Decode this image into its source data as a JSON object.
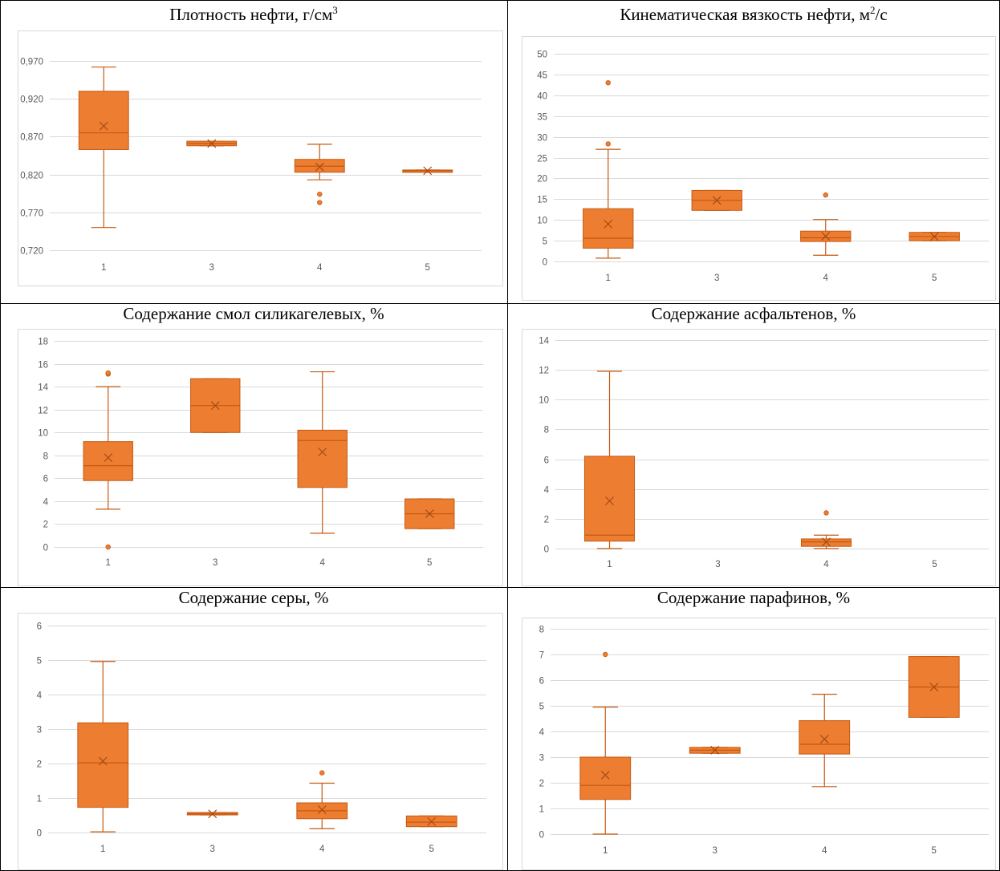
{
  "colors": {
    "box": "#ED7D31",
    "box_edge": "#C55A11",
    "grid": "#D9D9D9",
    "tick_text": "#595959",
    "table_border": "#000000"
  },
  "chart_data": [
    {
      "type": "box",
      "title": "Плотность нефти, г/см",
      "title_sup": "3",
      "categories": [
        "1",
        "3",
        "4",
        "5"
      ],
      "ylim": [
        0.72,
        0.97
      ],
      "yticks": [
        0.72,
        0.77,
        0.82,
        0.87,
        0.92,
        0.97
      ],
      "ytick_labels": [
        "0,720",
        "0,770",
        "0,820",
        "0,870",
        "0,920",
        "0,970"
      ],
      "grid": true,
      "boxes": [
        {
          "category": "1",
          "min": 0.75,
          "q1": 0.853,
          "median": 0.875,
          "q3": 0.93,
          "max": 0.962,
          "mean": 0.884,
          "outliers": []
        },
        {
          "category": "3",
          "min": 0.858,
          "q1": 0.858,
          "median": 0.861,
          "q3": 0.864,
          "max": 0.864,
          "mean": 0.861,
          "outliers": []
        },
        {
          "category": "4",
          "min": 0.813,
          "q1": 0.823,
          "median": 0.831,
          "q3": 0.84,
          "max": 0.86,
          "mean": 0.83,
          "outliers": [
            0.794,
            0.783
          ]
        },
        {
          "category": "5",
          "min": 0.824,
          "q1": 0.824,
          "median": 0.825,
          "q3": 0.826,
          "max": 0.826,
          "mean": 0.825,
          "outliers": []
        }
      ]
    },
    {
      "type": "box",
      "title": "Кинематическая вязкость нефти, м",
      "title_sup": "2",
      "title_suffix": "/с",
      "categories": [
        "1",
        "3",
        "4",
        "5"
      ],
      "ylim": [
        0,
        50
      ],
      "yticks": [
        0,
        5,
        10,
        15,
        20,
        25,
        30,
        35,
        40,
        45,
        50
      ],
      "ytick_labels": [
        "0",
        "5",
        "10",
        "15",
        "20",
        "25",
        "30",
        "35",
        "40",
        "45",
        "50"
      ],
      "grid": true,
      "boxes": [
        {
          "category": "1",
          "min": 0.8,
          "q1": 3.2,
          "median": 5.6,
          "q3": 12.7,
          "max": 27.0,
          "mean": 9.0,
          "outliers": [
            28.3,
            43.0
          ]
        },
        {
          "category": "3",
          "min": 12.3,
          "q1": 12.3,
          "median": 14.7,
          "q3": 17.1,
          "max": 17.1,
          "mean": 14.7,
          "outliers": []
        },
        {
          "category": "4",
          "min": 1.5,
          "q1": 4.8,
          "median": 5.7,
          "q3": 7.3,
          "max": 10.1,
          "mean": 6.1,
          "outliers": [
            16.0
          ]
        },
        {
          "category": "5",
          "min": 5.0,
          "q1": 5.0,
          "median": 6.0,
          "q3": 7.0,
          "max": 7.0,
          "mean": 6.0,
          "outliers": []
        }
      ]
    },
    {
      "type": "box",
      "title": "Содержание смол силикагелевых, %",
      "categories": [
        "1",
        "3",
        "4",
        "5"
      ],
      "ylim": [
        0,
        18
      ],
      "yticks": [
        0,
        2,
        4,
        6,
        8,
        10,
        12,
        14,
        16,
        18
      ],
      "ytick_labels": [
        "0",
        "2",
        "4",
        "6",
        "8",
        "10",
        "12",
        "14",
        "16",
        "18"
      ],
      "grid": true,
      "boxes": [
        {
          "category": "1",
          "min": 3.3,
          "q1": 5.8,
          "median": 7.1,
          "q3": 9.2,
          "max": 14.0,
          "mean": 7.8,
          "outliers": [
            15.1,
            15.2,
            0.0
          ]
        },
        {
          "category": "3",
          "min": 10.0,
          "q1": 10.0,
          "median": 12.35,
          "q3": 14.7,
          "max": 14.7,
          "mean": 12.35,
          "outliers": []
        },
        {
          "category": "4",
          "min": 1.2,
          "q1": 5.2,
          "median": 9.3,
          "q3": 10.2,
          "max": 15.3,
          "mean": 8.3,
          "outliers": []
        },
        {
          "category": "5",
          "min": 1.6,
          "q1": 1.6,
          "median": 2.9,
          "q3": 4.2,
          "max": 4.2,
          "mean": 2.9,
          "outliers": []
        }
      ]
    },
    {
      "type": "box",
      "title": "Содержание асфальтенов, %",
      "categories": [
        "1",
        "3",
        "4",
        "5"
      ],
      "ylim": [
        0,
        14
      ],
      "yticks": [
        0,
        2,
        4,
        6,
        8,
        10,
        12,
        14
      ],
      "ytick_labels": [
        "0",
        "2",
        "4",
        "6",
        "8",
        "10",
        "12",
        "14"
      ],
      "grid": true,
      "boxes": [
        {
          "category": "1",
          "min": 0.0,
          "q1": 0.5,
          "median": 0.9,
          "q3": 6.2,
          "max": 11.9,
          "mean": 3.2,
          "outliers": []
        },
        {
          "category": "4",
          "min": 0.0,
          "q1": 0.15,
          "median": 0.45,
          "q3": 0.65,
          "max": 0.9,
          "mean": 0.45,
          "outliers": [
            2.4
          ]
        }
      ]
    },
    {
      "type": "box",
      "title": "Содержание серы, %",
      "categories": [
        "1",
        "3",
        "4",
        "5"
      ],
      "ylim": [
        0,
        6
      ],
      "yticks": [
        0,
        1,
        2,
        3,
        4,
        5,
        6
      ],
      "ytick_labels": [
        "0",
        "1",
        "2",
        "3",
        "4",
        "5",
        "6"
      ],
      "grid": true,
      "boxes": [
        {
          "category": "1",
          "min": 0.02,
          "q1": 0.73,
          "median": 2.02,
          "q3": 3.18,
          "max": 4.96,
          "mean": 2.07,
          "outliers": []
        },
        {
          "category": "3",
          "min": 0.51,
          "q1": 0.51,
          "median": 0.54,
          "q3": 0.58,
          "max": 0.58,
          "mean": 0.54,
          "outliers": []
        },
        {
          "category": "4",
          "min": 0.11,
          "q1": 0.4,
          "median": 0.63,
          "q3": 0.86,
          "max": 1.43,
          "mean": 0.66,
          "outliers": [
            1.73
          ]
        },
        {
          "category": "5",
          "min": 0.17,
          "q1": 0.17,
          "median": 0.3,
          "q3": 0.48,
          "max": 0.48,
          "mean": 0.32,
          "outliers": []
        }
      ]
    },
    {
      "type": "box",
      "title": "Содержание парафинов, %",
      "categories": [
        "1",
        "3",
        "4",
        "5"
      ],
      "ylim": [
        0,
        8
      ],
      "yticks": [
        0,
        1,
        2,
        3,
        4,
        5,
        6,
        7,
        8
      ],
      "ytick_labels": [
        "0",
        "1",
        "2",
        "3",
        "4",
        "5",
        "6",
        "7",
        "8"
      ],
      "grid": true,
      "boxes": [
        {
          "category": "1",
          "min": 0.0,
          "q1": 1.35,
          "median": 1.9,
          "q3": 3.0,
          "max": 4.95,
          "mean": 2.3,
          "outliers": [
            7.0
          ]
        },
        {
          "category": "3",
          "min": 3.15,
          "q1": 3.15,
          "median": 3.27,
          "q3": 3.38,
          "max": 3.38,
          "mean": 3.27,
          "outliers": []
        },
        {
          "category": "4",
          "min": 1.85,
          "q1": 3.12,
          "median": 3.5,
          "q3": 4.42,
          "max": 5.45,
          "mean": 3.7,
          "outliers": []
        },
        {
          "category": "5",
          "min": 4.55,
          "q1": 4.55,
          "median": 5.73,
          "q3": 6.92,
          "max": 6.92,
          "mean": 5.73,
          "outliers": []
        }
      ]
    }
  ]
}
